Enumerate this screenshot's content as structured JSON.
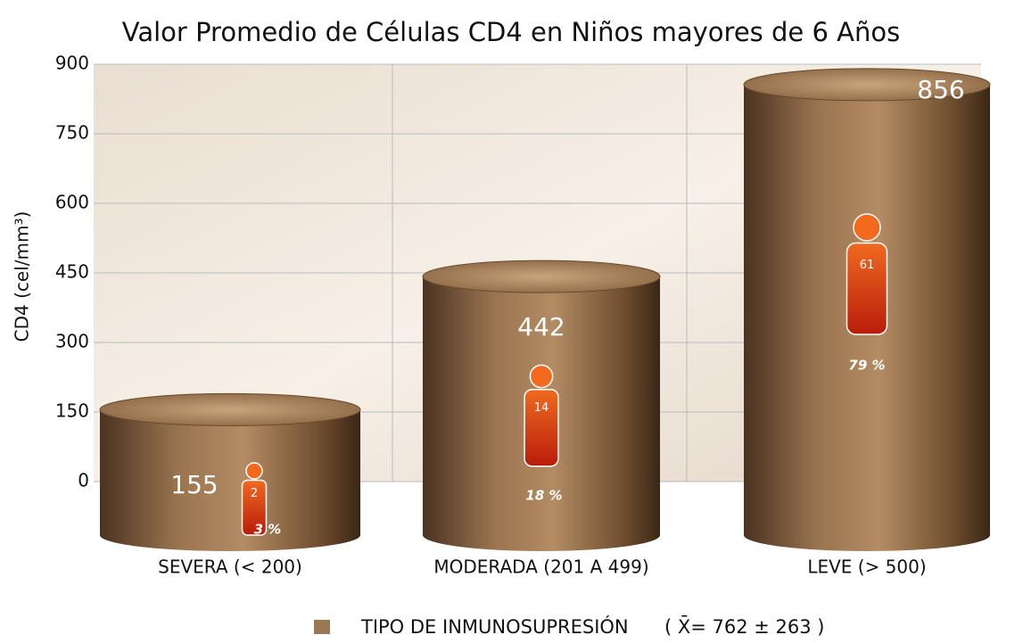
{
  "chart_data": {
    "type": "cylinder-bar",
    "title": "Valor Promedio de Células CD4 en Niños mayores de 6 Años",
    "y_label": "CD4  (cel/mm³)",
    "categories": [
      "SEVERA (< 200)",
      "MODERADA (201 A 499)",
      "LEVE (> 500)"
    ],
    "series": [
      {
        "name": "TIPO DE INMUNOSUPRESIÓN",
        "color": "#8a6542",
        "values": [
          155,
          442,
          856
        ]
      }
    ],
    "patients": [
      2,
      14,
      61
    ],
    "percentages": {
      "values": [
        3,
        18,
        79
      ],
      "value_labels": [
        "3 %",
        "18 %",
        "79 %"
      ]
    },
    "annotation": "( X̄= 762 ± 263 )",
    "ylim": [
      0,
      900
    ],
    "yticks": [
      0,
      150,
      300,
      450,
      600,
      750,
      900
    ],
    "grid": true
  }
}
